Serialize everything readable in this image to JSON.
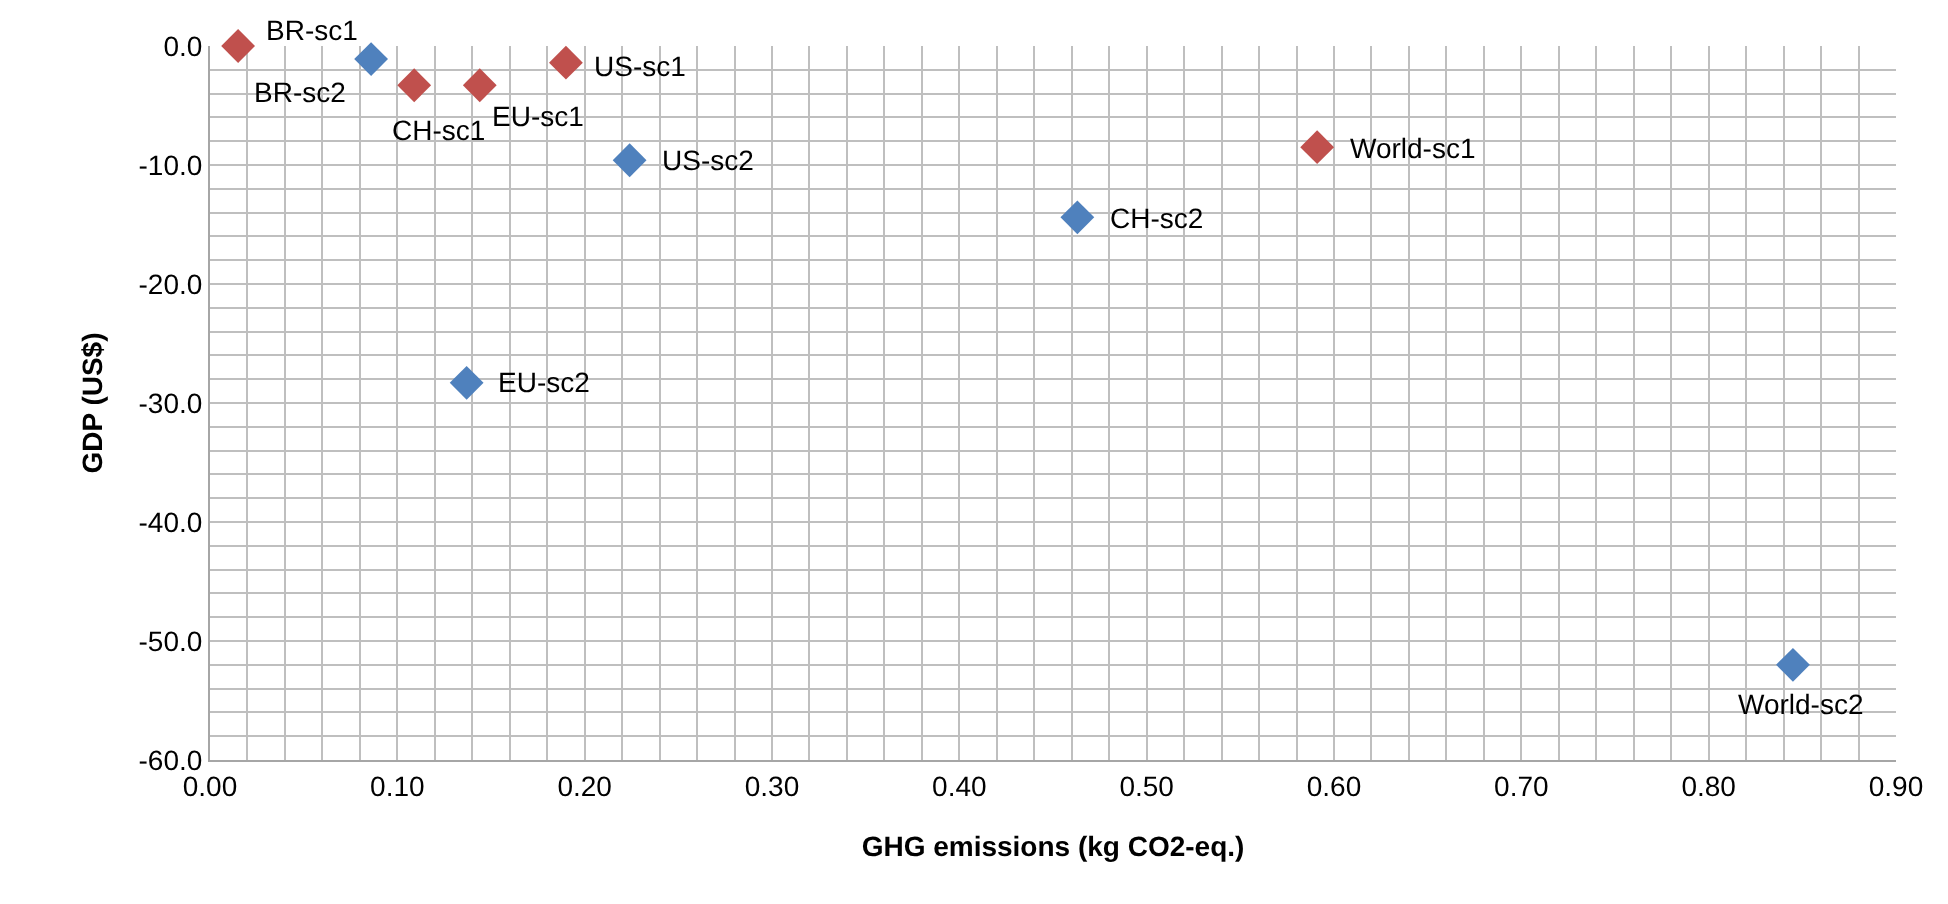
{
  "chart_data": {
    "type": "scatter",
    "xlabel": "GHG emissions (kg CO2-eq.)",
    "ylabel": "GDP (US$)",
    "marker": "diamond",
    "grid": true,
    "xlim": [
      0,
      0.9
    ],
    "ylim": [
      -60,
      0
    ],
    "xticks": [
      {
        "value": 0,
        "label": "0.00"
      },
      {
        "value": 0.02,
        "label": null
      },
      {
        "value": 0.04,
        "label": null
      },
      {
        "value": 0.06,
        "label": null
      },
      {
        "value": 0.08,
        "label": null
      },
      {
        "value": 0.1,
        "label": "0.10"
      },
      {
        "value": 0.12,
        "label": null
      },
      {
        "value": 0.14,
        "label": null
      },
      {
        "value": 0.16,
        "label": null
      },
      {
        "value": 0.18,
        "label": null
      },
      {
        "value": 0.2,
        "label": "0.20"
      },
      {
        "value": 0.22,
        "label": null
      },
      {
        "value": 0.24,
        "label": null
      },
      {
        "value": 0.26,
        "label": null
      },
      {
        "value": 0.28,
        "label": null
      },
      {
        "value": 0.3,
        "label": "0.30"
      },
      {
        "value": 0.32,
        "label": null
      },
      {
        "value": 0.34,
        "label": null
      },
      {
        "value": 0.36,
        "label": null
      },
      {
        "value": 0.38,
        "label": null
      },
      {
        "value": 0.4,
        "label": "0.40"
      },
      {
        "value": 0.42,
        "label": null
      },
      {
        "value": 0.44,
        "label": null
      },
      {
        "value": 0.46,
        "label": null
      },
      {
        "value": 0.48,
        "label": null
      },
      {
        "value": 0.5,
        "label": "0.50"
      },
      {
        "value": 0.52,
        "label": null
      },
      {
        "value": 0.54,
        "label": null
      },
      {
        "value": 0.56,
        "label": null
      },
      {
        "value": 0.58,
        "label": null
      },
      {
        "value": 0.6,
        "label": "0.60"
      },
      {
        "value": 0.62,
        "label": null
      },
      {
        "value": 0.64,
        "label": null
      },
      {
        "value": 0.66,
        "label": null
      },
      {
        "value": 0.68,
        "label": null
      },
      {
        "value": 0.7,
        "label": "0.70"
      },
      {
        "value": 0.72,
        "label": null
      },
      {
        "value": 0.74,
        "label": null
      },
      {
        "value": 0.76,
        "label": null
      },
      {
        "value": 0.78,
        "label": null
      },
      {
        "value": 0.8,
        "label": "0.80"
      },
      {
        "value": 0.82,
        "label": null
      },
      {
        "value": 0.84,
        "label": null
      },
      {
        "value": 0.86,
        "label": null
      },
      {
        "value": 0.88,
        "label": null
      },
      {
        "value": 0.9,
        "label": "0.90"
      }
    ],
    "yticks": [
      {
        "value": 0,
        "label": "0.0"
      },
      {
        "value": -2,
        "label": null
      },
      {
        "value": -4,
        "label": null
      },
      {
        "value": -6,
        "label": null
      },
      {
        "value": -8,
        "label": null
      },
      {
        "value": -10,
        "label": "-10.0"
      },
      {
        "value": -12,
        "label": null
      },
      {
        "value": -14,
        "label": null
      },
      {
        "value": -16,
        "label": null
      },
      {
        "value": -18,
        "label": null
      },
      {
        "value": -20,
        "label": "-20.0"
      },
      {
        "value": -22,
        "label": null
      },
      {
        "value": -24,
        "label": null
      },
      {
        "value": -26,
        "label": null
      },
      {
        "value": -28,
        "label": null
      },
      {
        "value": -30,
        "label": "-30.0"
      },
      {
        "value": -32,
        "label": null
      },
      {
        "value": -34,
        "label": null
      },
      {
        "value": -36,
        "label": null
      },
      {
        "value": -38,
        "label": null
      },
      {
        "value": -40,
        "label": "-40.0"
      },
      {
        "value": -42,
        "label": null
      },
      {
        "value": -44,
        "label": null
      },
      {
        "value": -46,
        "label": null
      },
      {
        "value": -48,
        "label": null
      },
      {
        "value": -50,
        "label": "-50.0"
      },
      {
        "value": -52,
        "label": null
      },
      {
        "value": -54,
        "label": null
      },
      {
        "value": -56,
        "label": null
      },
      {
        "value": -58,
        "label": null
      },
      {
        "value": -60,
        "label": "-60.0"
      }
    ],
    "series": [
      {
        "color": "#c0504d",
        "x": [
          0.015,
          0.109,
          0.144,
          0.19,
          0.591
        ],
        "values": [
          0.0,
          -3.3,
          -3.3,
          -1.4,
          -8.5
        ]
      },
      {
        "color": "#4f81bd",
        "x": [
          0.086,
          0.463,
          0.137,
          0.224,
          0.845
        ],
        "values": [
          -1.1,
          -14.4,
          -28.3,
          -9.6,
          -52.0
        ]
      }
    ],
    "annotations": [
      {
        "text": "BR-sc1",
        "x": 0.015,
        "y": 0.0
      },
      {
        "text": "BR-sc2",
        "x": 0.086,
        "y": -1.1
      },
      {
        "text": "CH-sc1",
        "x": 0.109,
        "y": -3.3
      },
      {
        "text": "EU-sc1",
        "x": 0.144,
        "y": -3.3
      },
      {
        "text": "US-sc1",
        "x": 0.19,
        "y": -1.4
      },
      {
        "text": "US-sc2",
        "x": 0.224,
        "y": -9.6
      },
      {
        "text": "EU-sc2",
        "x": 0.137,
        "y": -28.3
      },
      {
        "text": "CH-sc2",
        "x": 0.463,
        "y": -14.4
      },
      {
        "text": "World-sc1",
        "x": 0.591,
        "y": -8.5
      },
      {
        "text": "World-sc2",
        "x": 0.845,
        "y": -52.0
      }
    ]
  }
}
